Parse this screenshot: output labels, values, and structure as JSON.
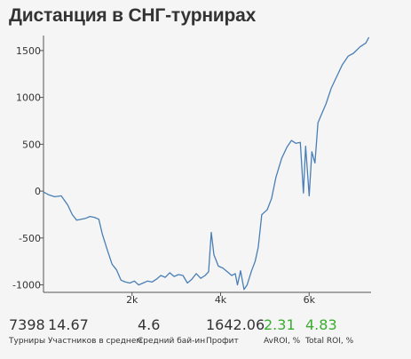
{
  "title": "Дистанция в СНГ-турнирах",
  "chart_data": {
    "type": "line",
    "title": "Дистанция в СНГ-турнирах",
    "xlabel": "",
    "ylabel": "",
    "xlim": [
      0,
      7398
    ],
    "ylim": [
      -1080,
      1660
    ],
    "x_ticks": [
      {
        "value": 2000,
        "label": "2k"
      },
      {
        "value": 4000,
        "label": "4k"
      },
      {
        "value": 6000,
        "label": "6k"
      }
    ],
    "y_ticks": [
      {
        "value": 1500,
        "label": "1500"
      },
      {
        "value": 1000,
        "label": "1000"
      },
      {
        "value": 500,
        "label": "500"
      },
      {
        "value": 0,
        "label": "0"
      },
      {
        "value": -500,
        "label": "-500"
      },
      {
        "value": -1000,
        "label": "-1000"
      }
    ],
    "grid": false,
    "line_color": "#4a7fb5",
    "series": [
      {
        "points": [
          [
            0,
            -10
          ],
          [
            120,
            -40
          ],
          [
            250,
            -60
          ],
          [
            400,
            -50
          ],
          [
            550,
            -150
          ],
          [
            650,
            -250
          ],
          [
            750,
            -310
          ],
          [
            850,
            -300
          ],
          [
            950,
            -290
          ],
          [
            1050,
            -270
          ],
          [
            1150,
            -280
          ],
          [
            1250,
            -300
          ],
          [
            1330,
            -460
          ],
          [
            1450,
            -640
          ],
          [
            1550,
            -780
          ],
          [
            1650,
            -840
          ],
          [
            1750,
            -950
          ],
          [
            1850,
            -970
          ],
          [
            1950,
            -980
          ],
          [
            2050,
            -960
          ],
          [
            2150,
            -1000
          ],
          [
            2250,
            -980
          ],
          [
            2350,
            -960
          ],
          [
            2450,
            -970
          ],
          [
            2550,
            -940
          ],
          [
            2650,
            -900
          ],
          [
            2750,
            -920
          ],
          [
            2850,
            -870
          ],
          [
            2950,
            -910
          ],
          [
            3050,
            -890
          ],
          [
            3150,
            -900
          ],
          [
            3250,
            -980
          ],
          [
            3350,
            -940
          ],
          [
            3450,
            -880
          ],
          [
            3550,
            -930
          ],
          [
            3650,
            -900
          ],
          [
            3730,
            -860
          ],
          [
            3790,
            -440
          ],
          [
            3850,
            -680
          ],
          [
            3950,
            -800
          ],
          [
            4050,
            -820
          ],
          [
            4150,
            -860
          ],
          [
            4250,
            -900
          ],
          [
            4330,
            -880
          ],
          [
            4380,
            -1000
          ],
          [
            4450,
            -850
          ],
          [
            4530,
            -1050
          ],
          [
            4600,
            -1000
          ],
          [
            4700,
            -850
          ],
          [
            4780,
            -750
          ],
          [
            4850,
            -600
          ],
          [
            4930,
            -250
          ],
          [
            5050,
            -200
          ],
          [
            5150,
            -80
          ],
          [
            5250,
            150
          ],
          [
            5380,
            350
          ],
          [
            5500,
            470
          ],
          [
            5600,
            540
          ],
          [
            5700,
            510
          ],
          [
            5800,
            520
          ],
          [
            5870,
            -20
          ],
          [
            5920,
            480
          ],
          [
            6000,
            -50
          ],
          [
            6060,
            420
          ],
          [
            6130,
            300
          ],
          [
            6200,
            730
          ],
          [
            6280,
            820
          ],
          [
            6380,
            930
          ],
          [
            6500,
            1100
          ],
          [
            6620,
            1220
          ],
          [
            6750,
            1350
          ],
          [
            6880,
            1440
          ],
          [
            7000,
            1470
          ],
          [
            7150,
            1540
          ],
          [
            7280,
            1580
          ],
          [
            7350,
            1642
          ]
        ]
      }
    ]
  },
  "stats": [
    {
      "value": "7398",
      "label": "Турниры",
      "color": "#333333"
    },
    {
      "value": "14.67",
      "label": "Участников в среднем",
      "color": "#333333"
    },
    {
      "value": "4.6",
      "label": "Средний бай-ин",
      "color": "#333333"
    },
    {
      "value": "1642.06",
      "label": "Профит",
      "color": "#333333"
    },
    {
      "value": "2.31",
      "label": "AvROI, %",
      "color": "#3aad2e"
    },
    {
      "value": "4.83",
      "label": "Total ROI, %",
      "color": "#3aad2e"
    }
  ]
}
